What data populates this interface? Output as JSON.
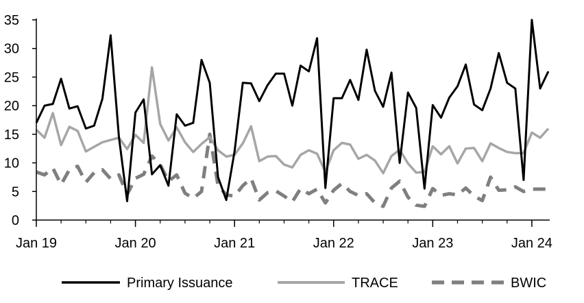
{
  "chart_data": {
    "type": "line",
    "title": "",
    "xlabel": "",
    "ylabel": "",
    "ylim": [
      0,
      35
    ],
    "yticks": [
      0,
      5,
      10,
      15,
      20,
      25,
      30,
      35
    ],
    "xlim": [
      0,
      63
    ],
    "xticks": [
      {
        "x": 0,
        "label": "Jan 19"
      },
      {
        "x": 12,
        "label": "Jan 20"
      },
      {
        "x": 24,
        "label": "Jan 21"
      },
      {
        "x": 36,
        "label": "Jan 22"
      },
      {
        "x": 48,
        "label": "Jan 23"
      },
      {
        "x": 60,
        "label": "Jan 24"
      }
    ],
    "grid": false,
    "legend_position": "bottom",
    "series": [
      {
        "name": "Primary Issuance",
        "color": "#000000",
        "dash": "solid",
        "values": [
          17.0,
          20.0,
          20.3,
          24.7,
          19.5,
          19.9,
          16.0,
          16.5,
          21.2,
          32.3,
          14.5,
          3.3,
          18.8,
          21.1,
          8.0,
          9.6,
          6.0,
          18.5,
          16.5,
          17.0,
          28.0,
          24.0,
          7.5,
          3.5,
          12.0,
          24.0,
          23.9,
          20.8,
          23.6,
          25.6,
          25.6,
          20.0,
          27.0,
          26.0,
          31.8,
          5.6,
          21.3,
          21.3,
          24.5,
          21.0,
          29.8,
          22.6,
          19.8,
          25.8,
          10.0,
          22.3,
          19.6,
          5.5,
          20.1,
          17.9,
          21.4,
          23.4,
          27.2,
          20.2,
          19.2,
          23.0,
          29.2,
          24.0,
          23.0,
          7.0,
          35.0,
          23.0,
          26.0
        ]
      },
      {
        "name": "TRACE",
        "color": "#a6a6a6",
        "dash": "solid",
        "values": [
          15.8,
          14.4,
          18.7,
          13.1,
          16.3,
          15.6,
          12.0,
          12.8,
          13.6,
          14.0,
          14.4,
          12.4,
          14.9,
          13.5,
          26.7,
          16.8,
          13.9,
          16.2,
          13.6,
          11.9,
          13.3,
          14.5,
          12.2,
          11.1,
          11.4,
          13.4,
          16.4,
          10.3,
          11.1,
          11.2,
          9.7,
          9.2,
          11.4,
          12.2,
          11.6,
          8.4,
          12.2,
          13.5,
          13.2,
          10.7,
          11.4,
          10.4,
          8.2,
          11.2,
          12.3,
          9.9,
          8.3,
          8.4,
          12.9,
          11.5,
          12.9,
          9.9,
          12.5,
          12.6,
          10.3,
          13.4,
          12.6,
          11.9,
          11.7,
          11.7,
          15.3,
          14.4,
          16.0
        ]
      },
      {
        "name": "BWIC",
        "color": "#7f7f7f",
        "dash": "dashed",
        "values": [
          8.4,
          7.9,
          9.1,
          6.2,
          8.8,
          9.4,
          6.6,
          8.3,
          8.8,
          7.2,
          7.9,
          4.5,
          7.3,
          8.0,
          11.2,
          9.7,
          6.8,
          7.9,
          4.7,
          3.8,
          5.0,
          15.0,
          6.0,
          4.4,
          4.2,
          6.0,
          7.3,
          3.5,
          4.8,
          5.1,
          4.2,
          3.2,
          5.5,
          4.6,
          5.4,
          3.0,
          5.2,
          6.4,
          5.0,
          4.3,
          4.6,
          3.0,
          2.4,
          5.6,
          6.8,
          4.0,
          2.6,
          2.4,
          5.5,
          4.3,
          4.6,
          4.4,
          5.6,
          4.2,
          3.4,
          7.5,
          5.2,
          5.3,
          5.8,
          5.0,
          5.4,
          5.4,
          5.4
        ]
      }
    ]
  }
}
